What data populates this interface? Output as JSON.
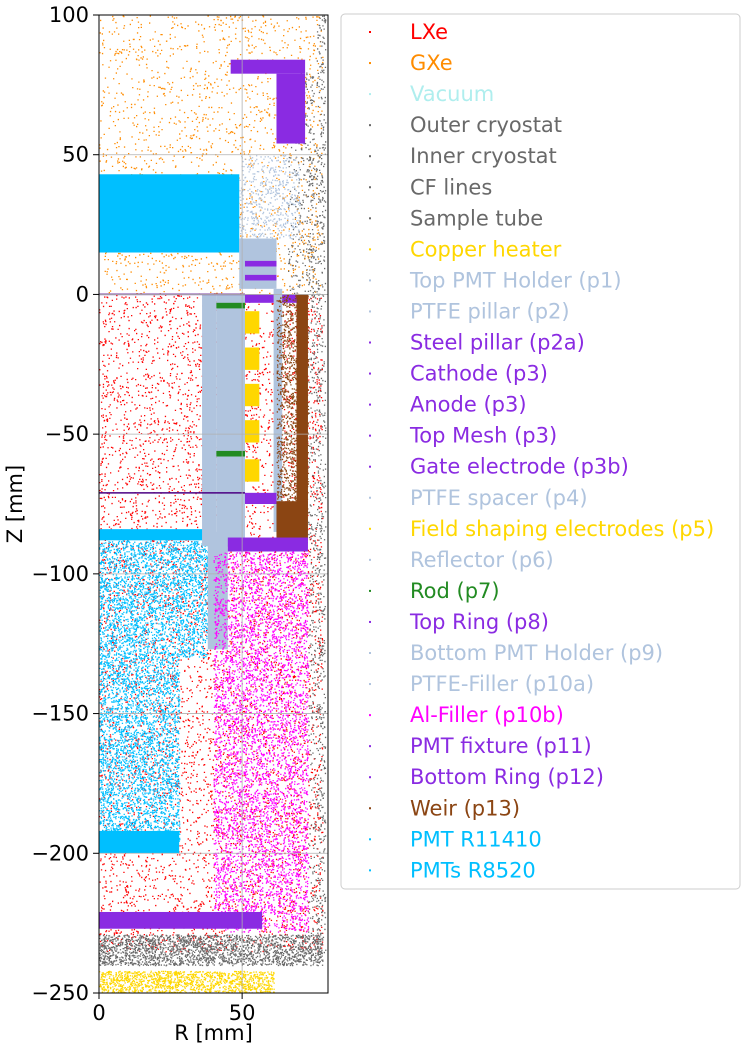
{
  "chart_data": {
    "type": "scatter",
    "title": "",
    "xlabel": "R [mm]",
    "ylabel": "Z [mm]",
    "xlim": [
      0,
      80
    ],
    "ylim": [
      -250,
      100
    ],
    "xticks": [
      {
        "value": 0,
        "label": "0"
      },
      {
        "value": 50,
        "label": "50"
      }
    ],
    "yticks": [
      {
        "value": 100,
        "label": "100"
      },
      {
        "value": 50,
        "label": "50"
      },
      {
        "value": 0,
        "label": "0"
      },
      {
        "value": -50,
        "label": "−50"
      },
      {
        "value": -100,
        "label": "−100"
      },
      {
        "value": -150,
        "label": "−150"
      },
      {
        "value": -200,
        "label": "−200"
      },
      {
        "value": -250,
        "label": "−250"
      }
    ],
    "grid": true,
    "legend_position": "outside-right",
    "series": [
      {
        "name": "LXe",
        "color": "#ff0000"
      },
      {
        "name": "GXe",
        "color": "#ff8c00"
      },
      {
        "name": "Vacuum",
        "color": "#afeeee"
      },
      {
        "name": "Outer cryostat",
        "color": "#696969"
      },
      {
        "name": "Inner cryostat",
        "color": "#696969"
      },
      {
        "name": "CF lines",
        "color": "#696969"
      },
      {
        "name": "Sample tube",
        "color": "#696969"
      },
      {
        "name": "Copper heater",
        "color": "#ffd700"
      },
      {
        "name": "Top PMT Holder (p1)",
        "color": "#b0c4de"
      },
      {
        "name": "PTFE pillar (p2)",
        "color": "#b0c4de"
      },
      {
        "name": "Steel pillar (p2a)",
        "color": "#8a2be2"
      },
      {
        "name": "Cathode (p3)",
        "color": "#8a2be2"
      },
      {
        "name": "Anode (p3)",
        "color": "#8a2be2"
      },
      {
        "name": "Top Mesh (p3)",
        "color": "#8a2be2"
      },
      {
        "name": "Gate electrode (p3b)",
        "color": "#8a2be2"
      },
      {
        "name": "PTFE spacer (p4)",
        "color": "#b0c4de"
      },
      {
        "name": "Field shaping electrodes (p5)",
        "color": "#ffd700"
      },
      {
        "name": "Reflector (p6)",
        "color": "#b0c4de"
      },
      {
        "name": "Rod (p7)",
        "color": "#228b22"
      },
      {
        "name": "Top Ring (p8)",
        "color": "#8a2be2"
      },
      {
        "name": "Bottom PMT Holder (p9)",
        "color": "#b0c4de"
      },
      {
        "name": "PTFE-Filler (p10a)",
        "color": "#b0c4de"
      },
      {
        "name": "Al-Filler (p10b)",
        "color": "#ff00ff"
      },
      {
        "name": "PMT fixture (p11)",
        "color": "#8a2be2"
      },
      {
        "name": "Bottom Ring (p12)",
        "color": "#8a2be2"
      },
      {
        "name": "Weir (p13)",
        "color": "#8b4513"
      },
      {
        "name": "PMT R11410",
        "color": "#00bfff"
      },
      {
        "name": "PMTs R8520",
        "color": "#00bfff"
      }
    ],
    "regions": [
      {
        "series": "GXe",
        "kind": "scatter",
        "r": [
          0,
          78
        ],
        "z": [
          0,
          100
        ],
        "density": 0.55
      },
      {
        "series": "LXe",
        "kind": "scatter",
        "r": [
          0,
          78
        ],
        "z": [
          -235,
          0
        ],
        "density": 0.9
      },
      {
        "series": "Outer cryostat",
        "kind": "scatter",
        "r": [
          0,
          78
        ],
        "z": [
          -240,
          -229
        ],
        "density": 6.0
      },
      {
        "series": "Outer cryostat",
        "kind": "scatter",
        "r": [
          76,
          79
        ],
        "z": [
          -238,
          100
        ],
        "density": 1.6
      },
      {
        "series": "Inner cryostat",
        "kind": "scatter",
        "r": [
          73,
          76
        ],
        "z": [
          -236,
          60
        ],
        "density": 1.2
      },
      {
        "series": "Sample tube",
        "kind": "scatter",
        "r": [
          66,
          75
        ],
        "z": [
          0,
          80
        ],
        "density": 1.0
      },
      {
        "series": "Copper heater",
        "kind": "scatter",
        "r": [
          0,
          61
        ],
        "z": [
          -250,
          -242
        ],
        "density": 7.0
      },
      {
        "series": "PMT R11410",
        "kind": "rect",
        "r": [
          0,
          49
        ],
        "z": [
          15,
          43
        ]
      },
      {
        "series": "PMT R11410",
        "kind": "rect",
        "r": [
          0,
          38
        ],
        "z": [
          -88,
          -84
        ]
      },
      {
        "series": "PMT R11410",
        "kind": "scatter",
        "r": [
          0,
          28
        ],
        "z": [
          -196,
          -88
        ],
        "density": 4.5
      },
      {
        "series": "PMT R11410",
        "kind": "scatter",
        "r": [
          28,
          38
        ],
        "z": [
          -130,
          -88
        ],
        "density": 4.5
      },
      {
        "series": "PMT R11410",
        "kind": "rect",
        "r": [
          0,
          28
        ],
        "z": [
          -200,
          -192
        ]
      },
      {
        "series": "Top PMT Holder (p1)",
        "kind": "rect",
        "r": [
          49,
          62
        ],
        "z": [
          2,
          20
        ]
      },
      {
        "series": "Top PMT Holder (p1)",
        "kind": "scatter",
        "r": [
          49,
          70
        ],
        "z": [
          20,
          50
        ],
        "density": 2.0
      },
      {
        "series": "Steel pillar (p2a)",
        "kind": "rect",
        "r": [
          46,
          72
        ],
        "z": [
          79,
          84
        ]
      },
      {
        "series": "Steel pillar (p2a)",
        "kind": "rect",
        "r": [
          62,
          72
        ],
        "z": [
          54,
          79
        ]
      },
      {
        "series": "Steel pillar (p2a)",
        "kind": "rect",
        "r": [
          51,
          62
        ],
        "z": [
          10,
          12
        ]
      },
      {
        "series": "Steel pillar (p2a)",
        "kind": "rect",
        "r": [
          51,
          62
        ],
        "z": [
          5,
          7
        ]
      },
      {
        "series": "Top Ring (p8)",
        "kind": "rect",
        "r": [
          51,
          72
        ],
        "z": [
          -3,
          0
        ]
      },
      {
        "series": "PTFE pillar (p2)",
        "kind": "rect",
        "r": [
          36,
          41
        ],
        "z": [
          -90,
          0
        ]
      },
      {
        "series": "PTFE pillar (p2)",
        "kind": "rect",
        "r": [
          41,
          51
        ],
        "z": [
          -90,
          0
        ]
      },
      {
        "series": "Reflector (p6)",
        "kind": "rect",
        "r": [
          61,
          64
        ],
        "z": [
          -85,
          2
        ]
      },
      {
        "series": "Field shaping electrodes (p5)",
        "kind": "rect",
        "r": [
          51,
          56
        ],
        "z": [
          -14,
          -6
        ]
      },
      {
        "series": "Field shaping electrodes (p5)",
        "kind": "rect",
        "r": [
          51,
          56
        ],
        "z": [
          -27,
          -19
        ]
      },
      {
        "series": "Field shaping electrodes (p5)",
        "kind": "rect",
        "r": [
          51,
          56
        ],
        "z": [
          -40,
          -32
        ]
      },
      {
        "series": "Field shaping electrodes (p5)",
        "kind": "rect",
        "r": [
          51,
          56
        ],
        "z": [
          -53,
          -45
        ]
      },
      {
        "series": "Field shaping electrodes (p5)",
        "kind": "rect",
        "r": [
          51,
          56
        ],
        "z": [
          -67,
          -59
        ]
      },
      {
        "series": "Rod (p7)",
        "kind": "rect",
        "r": [
          41,
          51
        ],
        "z": [
          -5,
          -3
        ]
      },
      {
        "series": "Rod (p7)",
        "kind": "rect",
        "r": [
          41,
          51
        ],
        "z": [
          -58,
          -56
        ]
      },
      {
        "series": "Gate electrode (p3b)",
        "kind": "rect",
        "r": [
          51,
          62
        ],
        "z": [
          -75,
          -71
        ]
      },
      {
        "series": "Weir (p13)",
        "kind": "scatter",
        "r": [
          62,
          73
        ],
        "z": [
          -78,
          0
        ],
        "density": 3.5
      },
      {
        "series": "Weir (p13)",
        "kind": "rect",
        "r": [
          69,
          73
        ],
        "z": [
          -78,
          0
        ]
      },
      {
        "series": "Weir (p13)",
        "kind": "rect",
        "r": [
          62,
          73
        ],
        "z": [
          -88,
          -74
        ]
      },
      {
        "series": "Bottom PMT Holder (p9)",
        "kind": "rect",
        "r": [
          38,
          45
        ],
        "z": [
          -127,
          -85
        ]
      },
      {
        "series": "PMT fixture (p11)",
        "kind": "rect",
        "r": [
          45,
          73
        ],
        "z": [
          -92,
          -87
        ]
      },
      {
        "series": "Al-Filler (p10b)",
        "kind": "scatter",
        "r": [
          40,
          73
        ],
        "z": [
          -228,
          -92
        ],
        "density": 4.0
      },
      {
        "series": "Bottom Ring (p12)",
        "kind": "rect",
        "r": [
          0,
          57
        ],
        "z": [
          -227,
          -221
        ]
      },
      {
        "series": "Inner cryostat",
        "kind": "line",
        "r": [
          0,
          51
        ],
        "z": [
          0,
          0
        ]
      },
      {
        "series": "Inner cryostat",
        "kind": "line",
        "r": [
          0,
          51
        ],
        "z": [
          -71,
          -71
        ]
      }
    ]
  }
}
